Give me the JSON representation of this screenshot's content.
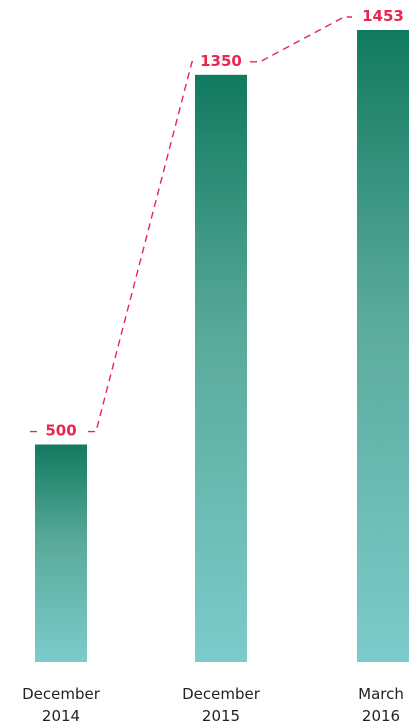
{
  "chart_data": {
    "type": "bar",
    "categories": [
      [
        "December",
        "2014"
      ],
      [
        "December",
        "2015"
      ],
      [
        "March",
        "2016"
      ]
    ],
    "values": [
      500,
      1350,
      1453
    ],
    "data_labels": [
      "500",
      "1350",
      "1453"
    ],
    "ylim": [
      0,
      1453
    ],
    "grid": false,
    "legend": "none",
    "connector": "dashed"
  },
  "colors": {
    "bar_top": "#117a5e",
    "bar_mid": "#5aaa9b",
    "bar_bottom": "#7ccbcb",
    "label": "#e8264e",
    "text": "#222222"
  }
}
